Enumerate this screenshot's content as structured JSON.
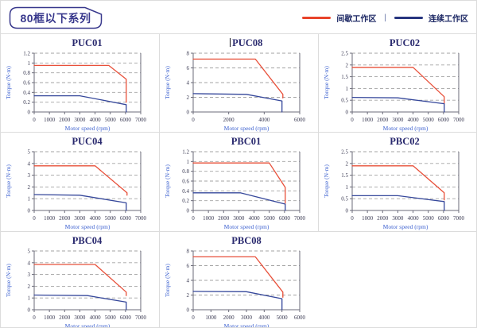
{
  "page": {
    "badge": "80框以下系列",
    "legend": {
      "intermittent": "间歇工作区",
      "separator": "|",
      "continuous": "连续工作区"
    },
    "colors": {
      "red": "#e8503a",
      "blue": "#36489b",
      "legend_red": "#e8432a",
      "legend_blue": "#27357f",
      "legend_text": "#1f2a66",
      "grid": "#a3a3a3",
      "plot_border": "#6b6b7a",
      "cell_border": "#dcdcdc",
      "title": "#29296e",
      "axis_label": "#3f63d0",
      "tick": "#3a3a52",
      "badge": "#38388c"
    }
  },
  "chart_data": [
    {
      "type": "line",
      "title": "PUC01",
      "xlabel": "Motor speed (rpm)",
      "ylabel": "Torque (N·m)",
      "xlim": [
        0,
        7000
      ],
      "ylim": [
        0,
        1.2
      ],
      "xticks": [
        "0",
        "1000",
        "2000",
        "3000",
        "4000",
        "5000",
        "6000",
        "7000"
      ],
      "yticks": [
        "0",
        "0.2",
        "0.4",
        "0.6",
        "0.8",
        "1",
        "1.2"
      ],
      "grid": "horizontal-dashed",
      "legend_position": "none",
      "series": [
        {
          "name": "间歇工作区",
          "color_key": "red",
          "points": [
            [
              0,
              0.95
            ],
            [
              4900,
              0.95
            ],
            [
              6050,
              0.67
            ],
            [
              6050,
              0.2
            ]
          ]
        },
        {
          "name": "连续工作区",
          "color_key": "blue",
          "points": [
            [
              0,
              0.33
            ],
            [
              3000,
              0.33
            ],
            [
              6050,
              0.15
            ],
            [
              6050,
              0
            ]
          ]
        }
      ]
    },
    {
      "type": "line",
      "title": "PUC08",
      "caret": true,
      "xlabel": "Motor speed (rpm)",
      "ylabel": "Torque (N·m)",
      "xlim": [
        0,
        6000
      ],
      "ylim": [
        0,
        8
      ],
      "xticks": [
        "0",
        "2000",
        "4000",
        "6000"
      ],
      "yticks": [
        "0",
        "2",
        "4",
        "6",
        "8"
      ],
      "grid": "horizontal-dashed",
      "legend_position": "none",
      "series": [
        {
          "name": "间歇工作区",
          "color_key": "red",
          "points": [
            [
              0,
              7.2
            ],
            [
              3500,
              7.2
            ],
            [
              5050,
              2.4
            ],
            [
              5050,
              1.9
            ]
          ]
        },
        {
          "name": "连续工作区",
          "color_key": "blue",
          "points": [
            [
              0,
              2.5
            ],
            [
              3000,
              2.4
            ],
            [
              5000,
              1.5
            ],
            [
              5000,
              0
            ]
          ]
        }
      ]
    },
    {
      "type": "line",
      "title": "PUC02",
      "xlabel": "Motor speed (rpm)",
      "ylabel": "Torque (N·m)",
      "xlim": [
        0,
        7000
      ],
      "ylim": [
        0,
        2.5
      ],
      "xticks": [
        "0",
        "1000",
        "2000",
        "3000",
        "4000",
        "5000",
        "6000",
        "7000"
      ],
      "yticks": [
        "0",
        "0.5",
        "1",
        "1.5",
        "2",
        "2.5"
      ],
      "grid": "horizontal-dashed",
      "legend_position": "none",
      "series": [
        {
          "name": "间歇工作区",
          "color_key": "red",
          "points": [
            [
              0,
              1.9
            ],
            [
              4000,
              1.9
            ],
            [
              6050,
              0.65
            ],
            [
              6050,
              0.35
            ]
          ]
        },
        {
          "name": "连续工作区",
          "color_key": "blue",
          "points": [
            [
              0,
              0.62
            ],
            [
              3000,
              0.6
            ],
            [
              6050,
              0.35
            ],
            [
              6050,
              0
            ]
          ]
        }
      ]
    },
    {
      "type": "line",
      "title": "PUC04",
      "xlabel": "Motor speed (rpm)",
      "ylabel": "Torque (N·m)",
      "xlim": [
        0,
        7000
      ],
      "ylim": [
        0,
        5
      ],
      "xticks": [
        "0",
        "1000",
        "2000",
        "3000",
        "4000",
        "5000",
        "6000",
        "7000"
      ],
      "yticks": [
        "0",
        "1",
        "2",
        "3",
        "4",
        "5"
      ],
      "grid": "horizontal-dashed",
      "legend_position": "none",
      "series": [
        {
          "name": "间歇工作区",
          "color_key": "red",
          "points": [
            [
              0,
              3.8
            ],
            [
              4000,
              3.8
            ],
            [
              6100,
              1.5
            ],
            [
              6100,
              1.3
            ]
          ]
        },
        {
          "name": "连续工作区",
          "color_key": "blue",
          "points": [
            [
              0,
              1.35
            ],
            [
              3000,
              1.3
            ],
            [
              6050,
              0.65
            ],
            [
              6050,
              0
            ]
          ]
        }
      ]
    },
    {
      "type": "line",
      "title": "PBC01",
      "xlabel": "Motor speed (rpm)",
      "ylabel": "Torque (N·m)",
      "xlim": [
        0,
        7000
      ],
      "ylim": [
        0,
        1.2
      ],
      "xticks": [
        "0",
        "1000",
        "2000",
        "3000",
        "4000",
        "5000",
        "6000",
        "7000"
      ],
      "yticks": [
        "0",
        "0.2",
        "0.4",
        "0.6",
        "0.8",
        "1",
        "1.2"
      ],
      "grid": "horizontal-dashed",
      "legend_position": "none",
      "series": [
        {
          "name": "间歇工作区",
          "color_key": "red",
          "points": [
            [
              0,
              0.97
            ],
            [
              5000,
              0.97
            ],
            [
              6050,
              0.47
            ],
            [
              6050,
              0.15
            ]
          ]
        },
        {
          "name": "连续工作区",
          "color_key": "blue",
          "points": [
            [
              0,
              0.36
            ],
            [
              3100,
              0.36
            ],
            [
              6050,
              0.13
            ],
            [
              6050,
              0
            ]
          ]
        }
      ]
    },
    {
      "type": "line",
      "title": "PBC02",
      "xlabel": "Motor speed (rpm)",
      "ylabel": "Torque (N·m)",
      "xlim": [
        0,
        7000
      ],
      "ylim": [
        0,
        2.5
      ],
      "xticks": [
        "0",
        "1000",
        "2000",
        "3000",
        "4000",
        "5000",
        "6000",
        "7000"
      ],
      "yticks": [
        "0",
        "0.5",
        "1",
        "1.5",
        "2",
        "2.5"
      ],
      "grid": "horizontal-dashed",
      "legend_position": "none",
      "series": [
        {
          "name": "间歇工作区",
          "color_key": "red",
          "points": [
            [
              0,
              1.9
            ],
            [
              4000,
              1.9
            ],
            [
              6050,
              0.75
            ],
            [
              6050,
              0.45
            ]
          ]
        },
        {
          "name": "连续工作区",
          "color_key": "blue",
          "points": [
            [
              0,
              0.63
            ],
            [
              3000,
              0.63
            ],
            [
              6050,
              0.38
            ],
            [
              6050,
              0
            ]
          ]
        }
      ]
    },
    {
      "type": "line",
      "title": "PBC04",
      "xlabel": "Motor speed (rpm)",
      "ylabel": "Torque (N·m)",
      "xlim": [
        0,
        7000
      ],
      "ylim": [
        0,
        5
      ],
      "xticks": [
        "0",
        "1000",
        "2000",
        "3000",
        "4000",
        "5000",
        "6000",
        "7000"
      ],
      "yticks": [
        "0",
        "1",
        "2",
        "3",
        "4",
        "5"
      ],
      "grid": "horizontal-dashed",
      "legend_position": "none",
      "series": [
        {
          "name": "间歇工作区",
          "color_key": "red",
          "points": [
            [
              0,
              3.85
            ],
            [
              4000,
              3.85
            ],
            [
              6050,
              1.5
            ],
            [
              6050,
              1.2
            ]
          ]
        },
        {
          "name": "连续工作区",
          "color_key": "blue",
          "points": [
            [
              0,
              1.25
            ],
            [
              3500,
              1.2
            ],
            [
              6050,
              0.65
            ],
            [
              6050,
              0
            ]
          ]
        }
      ]
    },
    {
      "type": "line",
      "title": "PBC08",
      "xlabel": "Motor speed (rpm)",
      "ylabel": "Torque (N·m)",
      "xlim": [
        0,
        6000
      ],
      "ylim": [
        0,
        8
      ],
      "xticks": [
        "0",
        "1000",
        "2000",
        "3000",
        "4000",
        "5000",
        "6000"
      ],
      "yticks": [
        "0",
        "2",
        "4",
        "6",
        "8"
      ],
      "grid": "horizontal-dashed",
      "legend_position": "none",
      "series": [
        {
          "name": "间歇工作区",
          "color_key": "red",
          "points": [
            [
              0,
              7.2
            ],
            [
              3500,
              7.2
            ],
            [
              5050,
              2.4
            ],
            [
              5050,
              1.7
            ]
          ]
        },
        {
          "name": "连续工作区",
          "color_key": "blue",
          "points": [
            [
              0,
              2.5
            ],
            [
              3000,
              2.45
            ],
            [
              5000,
              1.5
            ],
            [
              5000,
              0
            ]
          ]
        }
      ]
    }
  ]
}
